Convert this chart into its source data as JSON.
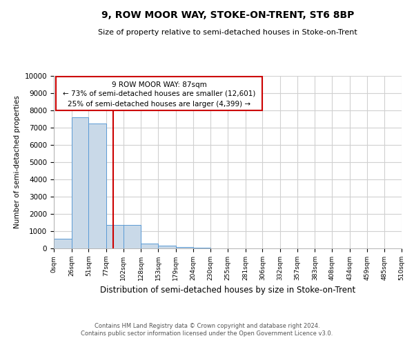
{
  "title": "9, ROW MOOR WAY, STOKE-ON-TRENT, ST6 8BP",
  "subtitle": "Size of property relative to semi-detached houses in Stoke-on-Trent",
  "xlabel": "Distribution of semi-detached houses by size in Stoke-on-Trent",
  "ylabel": "Number of semi-detached properties",
  "footer_line1": "Contains HM Land Registry data © Crown copyright and database right 2024.",
  "footer_line2": "Contains public sector information licensed under the Open Government Licence v3.0.",
  "annotation_title": "9 ROW MOOR WAY: 87sqm",
  "annotation_line1": "← 73% of semi-detached houses are smaller (12,601)",
  "annotation_line2": "25% of semi-detached houses are larger (4,399) →",
  "property_size": 87,
  "bar_color": "#c9d9e8",
  "bar_edge_color": "#5b9bd5",
  "vline_color": "#cc0000",
  "annotation_box_color": "#ffffff",
  "annotation_box_edge": "#cc0000",
  "background_color": "#ffffff",
  "grid_color": "#d0d0d0",
  "bins": [
    0,
    26,
    51,
    77,
    102,
    128,
    153,
    179,
    204,
    230,
    255,
    281,
    306,
    332,
    357,
    383,
    408,
    434,
    459,
    485,
    510
  ],
  "bin_labels": [
    "0sqm",
    "26sqm",
    "51sqm",
    "77sqm",
    "102sqm",
    "128sqm",
    "153sqm",
    "179sqm",
    "204sqm",
    "230sqm",
    "255sqm",
    "281sqm",
    "306sqm",
    "332sqm",
    "357sqm",
    "383sqm",
    "408sqm",
    "434sqm",
    "459sqm",
    "485sqm",
    "510sqm"
  ],
  "counts": [
    550,
    7600,
    7250,
    1350,
    1350,
    300,
    150,
    100,
    60,
    0,
    0,
    0,
    0,
    0,
    0,
    0,
    0,
    0,
    0,
    0
  ],
  "ylim": [
    0,
    10000
  ],
  "yticks": [
    0,
    1000,
    2000,
    3000,
    4000,
    5000,
    6000,
    7000,
    8000,
    9000,
    10000
  ]
}
